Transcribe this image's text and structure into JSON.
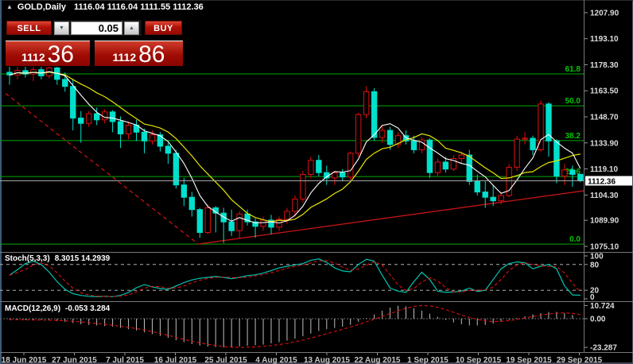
{
  "window_title": {
    "symbol": "GOLD,Daily",
    "ohlc": "1116.04 1116.04 1111.55 1112.36",
    "expand_icon": "▲"
  },
  "trade_widget": {
    "sell_label": "SELL",
    "buy_label": "BUY",
    "volume": "0.05",
    "volume_down_icon": "▼",
    "volume_up_icon": "▲",
    "bid": {
      "small": "1112",
      "big": "36"
    },
    "ask": {
      "small": "1112",
      "big": "86"
    }
  },
  "chart_data": {
    "type": "candlestick",
    "title": "GOLD,Daily",
    "y_axis": {
      "ticks": [
        "1207.90",
        "1193.10",
        "1178.30",
        "1163.50",
        "1148.70",
        "1133.90",
        "1119.10",
        "1104.30",
        "1089.90",
        "1075.10"
      ],
      "current_price": "1112.36"
    },
    "x_axis": {
      "labels": [
        "18 Jun 2015",
        "27 Jun 2015",
        "7 Jul 2015",
        "16 Jul 2015",
        "25 Jul 2015",
        "4 Aug 2015",
        "13 Aug 2015",
        "22 Aug 2015",
        "1 Sep 2015",
        "10 Sep 2015",
        "19 Sep 2015",
        "29 Sep 2015"
      ]
    },
    "colors": {
      "bull": "#e01010",
      "bear": "#00e0cc",
      "ma_fast": "#ffffff",
      "ma_slow": "#e6e600",
      "fib_line": "#00a800",
      "fib_text": "#00c800",
      "trend": "#c81414",
      "bid_line": "#a8a8a8",
      "hist": "#bebebe",
      "stoch_k": "#00c4b0",
      "signal_red": "#e01010",
      "axis_text": "#dcdcdc"
    },
    "candles": [
      [
        1174,
        1180,
        1167,
        1172.5
      ],
      [
        1172.5,
        1177,
        1170,
        1175
      ],
      [
        1175,
        1178,
        1171,
        1173
      ],
      [
        1173,
        1177,
        1169,
        1175.5
      ],
      [
        1175.5,
        1178,
        1170,
        1172
      ],
      [
        1172,
        1179,
        1170.5,
        1176.5
      ],
      [
        1176.5,
        1178,
        1167,
        1170
      ],
      [
        1170,
        1174,
        1163,
        1166
      ],
      [
        1166,
        1170,
        1141,
        1148
      ],
      [
        1148,
        1152,
        1134,
        1145
      ],
      [
        1145,
        1152,
        1143,
        1150.5
      ],
      [
        1150.5,
        1154,
        1144,
        1147
      ],
      [
        1147,
        1153,
        1145,
        1151.5
      ],
      [
        1151.5,
        1152.5,
        1140,
        1146
      ],
      [
        1146,
        1149,
        1131,
        1139
      ],
      [
        1139,
        1146,
        1136,
        1144
      ],
      [
        1144,
        1147,
        1135,
        1140
      ],
      [
        1140,
        1142,
        1128,
        1135
      ],
      [
        1135,
        1141,
        1133,
        1138.5
      ],
      [
        1138.5,
        1140,
        1129,
        1132
      ],
      [
        1132,
        1134,
        1122,
        1128
      ],
      [
        1128,
        1130,
        1108,
        1110
      ],
      [
        1110,
        1114,
        1098,
        1103
      ],
      [
        1103,
        1106,
        1092,
        1096
      ],
      [
        1096,
        1097,
        1080,
        1083
      ],
      [
        1083,
        1099,
        1082,
        1097
      ],
      [
        1097,
        1098,
        1083,
        1094
      ],
      [
        1094,
        1097,
        1077,
        1089
      ],
      [
        1089,
        1096,
        1081,
        1084
      ],
      [
        1084,
        1095,
        1080,
        1093.5
      ],
      [
        1093.5,
        1096,
        1087,
        1089
      ],
      [
        1089,
        1091,
        1080,
        1086.5
      ],
      [
        1086.5,
        1092,
        1084,
        1090
      ],
      [
        1090,
        1093,
        1082,
        1086
      ],
      [
        1086,
        1092,
        1084,
        1090.5
      ],
      [
        1090.5,
        1097,
        1088,
        1095
      ],
      [
        1095,
        1104,
        1092,
        1102
      ],
      [
        1102,
        1118,
        1100,
        1116
      ],
      [
        1116,
        1126,
        1114,
        1124
      ],
      [
        1124,
        1127,
        1115,
        1117
      ],
      [
        1117,
        1121,
        1110,
        1114
      ],
      [
        1114,
        1118,
        1110,
        1117
      ],
      [
        1117,
        1119,
        1112,
        1114.5
      ],
      [
        1114.5,
        1129,
        1113,
        1128
      ],
      [
        1128,
        1151,
        1126,
        1150
      ],
      [
        1150,
        1166,
        1148,
        1163
      ],
      [
        1163,
        1165,
        1135,
        1137
      ],
      [
        1137,
        1144,
        1134,
        1141
      ],
      [
        1141,
        1143,
        1130,
        1133
      ],
      [
        1133,
        1140,
        1131,
        1138
      ],
      [
        1138,
        1141,
        1133,
        1135
      ],
      [
        1135,
        1138,
        1128,
        1130
      ],
      [
        1130,
        1137,
        1128,
        1135.5
      ],
      [
        1135.5,
        1136.5,
        1114,
        1117
      ],
      [
        1117,
        1125,
        1115,
        1123
      ],
      [
        1123,
        1126,
        1117,
        1119
      ],
      [
        1119,
        1127,
        1118,
        1125
      ],
      [
        1125,
        1129,
        1122,
        1127
      ],
      [
        1127,
        1130,
        1110,
        1112
      ],
      [
        1112,
        1116,
        1104,
        1106
      ],
      [
        1106,
        1112,
        1097,
        1103
      ],
      [
        1103,
        1110,
        1098,
        1101
      ],
      [
        1101,
        1106,
        1099,
        1104
      ],
      [
        1104,
        1122,
        1103,
        1120
      ],
      [
        1120,
        1138,
        1118,
        1136
      ],
      [
        1136,
        1140,
        1133,
        1136.5
      ],
      [
        1136.5,
        1138,
        1127,
        1130
      ],
      [
        1130,
        1158,
        1129,
        1156
      ],
      [
        1156,
        1157,
        1126,
        1135
      ],
      [
        1135,
        1136,
        1111,
        1115
      ],
      [
        1115,
        1122,
        1110,
        1118.5
      ],
      [
        1118.5,
        1121,
        1109,
        1116
      ],
      [
        1116.04,
        1116.04,
        1111.55,
        1112.36
      ]
    ],
    "ma_fast_period": 5,
    "ma_slow_period": 10,
    "fib_levels": [
      {
        "label": "61.8",
        "price": 1173.1
      },
      {
        "label": "50.0",
        "price": 1155.0
      },
      {
        "label": "38.2",
        "price": 1135.2
      },
      {
        "label": "23.6",
        "price": 1114.8
      },
      {
        "label": "0.0",
        "price": 1076.4
      }
    ],
    "bid_price": 1112.36,
    "trendlines": [
      {
        "style": "dashed",
        "from_index": -0.5,
        "from_price": 1162,
        "to_index": 23.8,
        "to_price": 1076.4
      },
      {
        "style": "solid",
        "from_index": 23.8,
        "from_price": 1076.4,
        "to_index": 72.6,
        "to_price": 1106.8
      }
    ],
    "stochastic": {
      "name": "Stoch(5,3,3)",
      "values_text": "8.3015 14.2939",
      "levels": [
        80,
        20
      ],
      "scale": [
        "100",
        "80",
        "20",
        "0"
      ],
      "k": [
        55,
        68,
        82,
        88,
        80,
        62,
        40,
        22,
        12,
        8,
        6,
        5,
        6,
        5,
        8,
        15,
        26,
        33,
        28,
        24,
        22,
        30,
        38,
        44,
        48,
        50,
        52,
        50,
        47,
        50,
        54,
        56,
        60,
        66,
        72,
        76,
        79,
        82,
        90,
        93,
        85,
        72,
        65,
        63,
        80,
        92,
        88,
        55,
        25,
        18,
        15,
        40,
        62,
        45,
        18,
        15,
        16,
        18,
        25,
        17,
        20,
        45,
        70,
        82,
        86,
        84,
        70,
        76,
        80,
        70,
        30,
        9,
        8.3
      ],
      "d_smoothing": 3
    },
    "macd": {
      "name": "MACD(12,26,9)",
      "values_text": "-0.053 3.284",
      "scale": [
        "10.724",
        "0.00",
        "-23.287"
      ],
      "histogram": [
        -0.5,
        -0.8,
        -1,
        -1.2,
        -1,
        -1.5,
        -2,
        -2.5,
        -3.5,
        -4.5,
        -5,
        -5.5,
        -6,
        -6.5,
        -7.5,
        -8.5,
        -9.5,
        -11,
        -12.5,
        -14,
        -15.5,
        -17.5,
        -19,
        -20.5,
        -21.8,
        -22.6,
        -23,
        -23.287,
        -23,
        -22.5,
        -22,
        -21.5,
        -21,
        -20,
        -19,
        -17.8,
        -16.2,
        -14.2,
        -12,
        -10,
        -8.5,
        -7.5,
        -6.5,
        -5,
        -2.5,
        0.5,
        3.5,
        6.5,
        9,
        10.5,
        10,
        8.5,
        6.5,
        4,
        1.5,
        -1,
        -3,
        -4.5,
        -5.5,
        -5.5,
        -5,
        -4,
        -2.5,
        -1,
        0.5,
        2,
        3.5,
        4.5,
        5.5,
        5.5,
        4.5,
        3,
        -0.053
      ],
      "signal": [
        -0.7,
        -0.8,
        -0.9,
        -1,
        -1.1,
        -1.2,
        -1.4,
        -1.7,
        -2.1,
        -2.6,
        -3.2,
        -3.9,
        -4.6,
        -5.3,
        -6.1,
        -7,
        -8,
        -9.2,
        -10.5,
        -12,
        -13.5,
        -15.2,
        -16.8,
        -18.3,
        -19.6,
        -20.8,
        -21.8,
        -22.6,
        -23.1,
        -23.287,
        -23.2,
        -22.9,
        -22.4,
        -21.8,
        -21,
        -20,
        -18.8,
        -17.4,
        -15.8,
        -14,
        -12.2,
        -10.4,
        -8.6,
        -6.8,
        -4.8,
        -2.6,
        -0.4,
        1.9,
        4.2,
        6.4,
        8.4,
        10,
        10.724,
        10.4,
        9.2,
        7.4,
        5.2,
        3,
        1,
        -0.6,
        -1.8,
        -2.3,
        -2.2,
        -1.6,
        -0.6,
        0.6,
        1.8,
        2.9,
        3.8,
        4.5,
        4.8,
        4.4,
        3.284
      ]
    }
  }
}
